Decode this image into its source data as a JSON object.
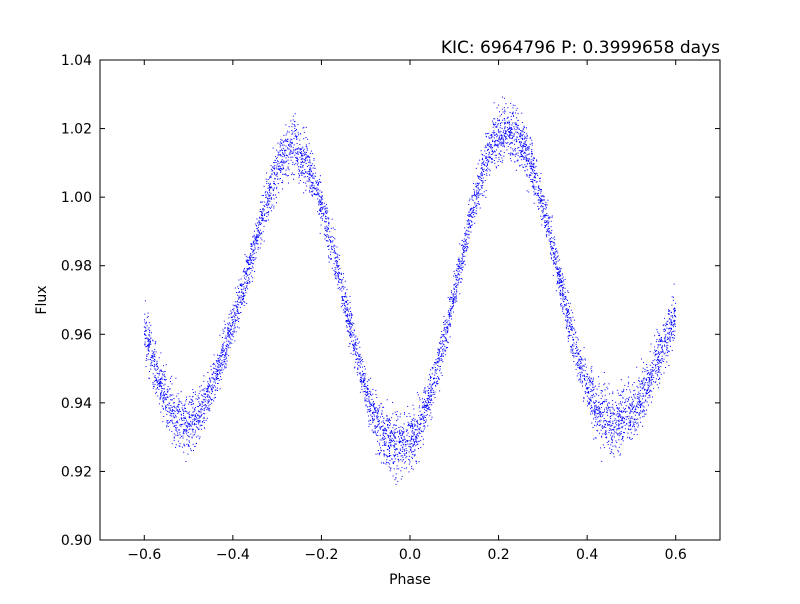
{
  "chart_data": {
    "type": "scatter",
    "title": "KIC: 6964796  P: 0.3999658 days",
    "xlabel": "Phase",
    "ylabel": "Flux",
    "xlim": [
      -0.7,
      0.7
    ],
    "ylim": [
      0.9,
      1.04
    ],
    "xticks": [
      -0.6,
      -0.4,
      -0.2,
      0.0,
      0.2,
      0.4,
      0.6
    ],
    "xtick_labels": [
      "−0.6",
      "−0.4",
      "−0.2",
      "0.0",
      "0.2",
      "0.4",
      "0.6"
    ],
    "yticks": [
      0.9,
      0.92,
      0.94,
      0.96,
      0.98,
      1.0,
      1.02,
      1.04
    ],
    "ytick_labels": [
      "0.90",
      "0.92",
      "0.94",
      "0.96",
      "0.98",
      "1.00",
      "1.02",
      "1.04"
    ],
    "grid": false,
    "marker_color": "#0000ff",
    "phase_range": [
      -0.6,
      0.6
    ],
    "series": [
      {
        "x": [
          -0.6,
          -0.58,
          -0.56,
          -0.54,
          -0.52,
          -0.5,
          -0.48,
          -0.46,
          -0.44,
          -0.42,
          -0.4,
          -0.38,
          -0.36,
          -0.34,
          -0.32,
          -0.3,
          -0.28,
          -0.26,
          -0.24,
          -0.22,
          -0.2,
          -0.18,
          -0.16,
          -0.14,
          -0.12,
          -0.1,
          -0.08,
          -0.06,
          -0.04,
          -0.02,
          0.0,
          0.02,
          0.04,
          0.06,
          0.08,
          0.1,
          0.12,
          0.14,
          0.16,
          0.18,
          0.2,
          0.22,
          0.24,
          0.26,
          0.28,
          0.3,
          0.32,
          0.34,
          0.36,
          0.38,
          0.4,
          0.42,
          0.44,
          0.46,
          0.48,
          0.5,
          0.52,
          0.54,
          0.56,
          0.58,
          0.6
        ],
        "y": [
          0.961,
          0.952,
          0.944,
          0.938,
          0.935,
          0.934,
          0.936,
          0.941,
          0.947,
          0.955,
          0.963,
          0.972,
          0.981,
          0.991,
          1.0,
          1.008,
          1.014,
          1.015,
          1.012,
          1.006,
          0.998,
          0.988,
          0.977,
          0.965,
          0.954,
          0.944,
          0.936,
          0.931,
          0.928,
          0.928,
          0.929,
          0.933,
          0.94,
          0.949,
          0.96,
          0.972,
          0.984,
          0.996,
          1.006,
          1.014,
          1.018,
          1.019,
          1.018,
          1.014,
          1.007,
          0.998,
          0.987,
          0.975,
          0.963,
          0.953,
          0.945,
          0.939,
          0.935,
          0.934,
          0.935,
          0.937,
          0.941,
          0.946,
          0.952,
          0.959,
          0.966
        ],
        "scatter": [
          0.007,
          0.008,
          0.008,
          0.009,
          0.009,
          0.009,
          0.008,
          0.007,
          0.006,
          0.006,
          0.006,
          0.006,
          0.006,
          0.006,
          0.007,
          0.007,
          0.008,
          0.008,
          0.008,
          0.007,
          0.006,
          0.006,
          0.006,
          0.006,
          0.006,
          0.006,
          0.007,
          0.008,
          0.009,
          0.009,
          0.009,
          0.008,
          0.007,
          0.006,
          0.006,
          0.006,
          0.006,
          0.006,
          0.007,
          0.008,
          0.008,
          0.008,
          0.008,
          0.008,
          0.007,
          0.006,
          0.006,
          0.006,
          0.006,
          0.007,
          0.008,
          0.008,
          0.009,
          0.009,
          0.009,
          0.009,
          0.008,
          0.008,
          0.007,
          0.007,
          0.006
        ]
      }
    ]
  }
}
